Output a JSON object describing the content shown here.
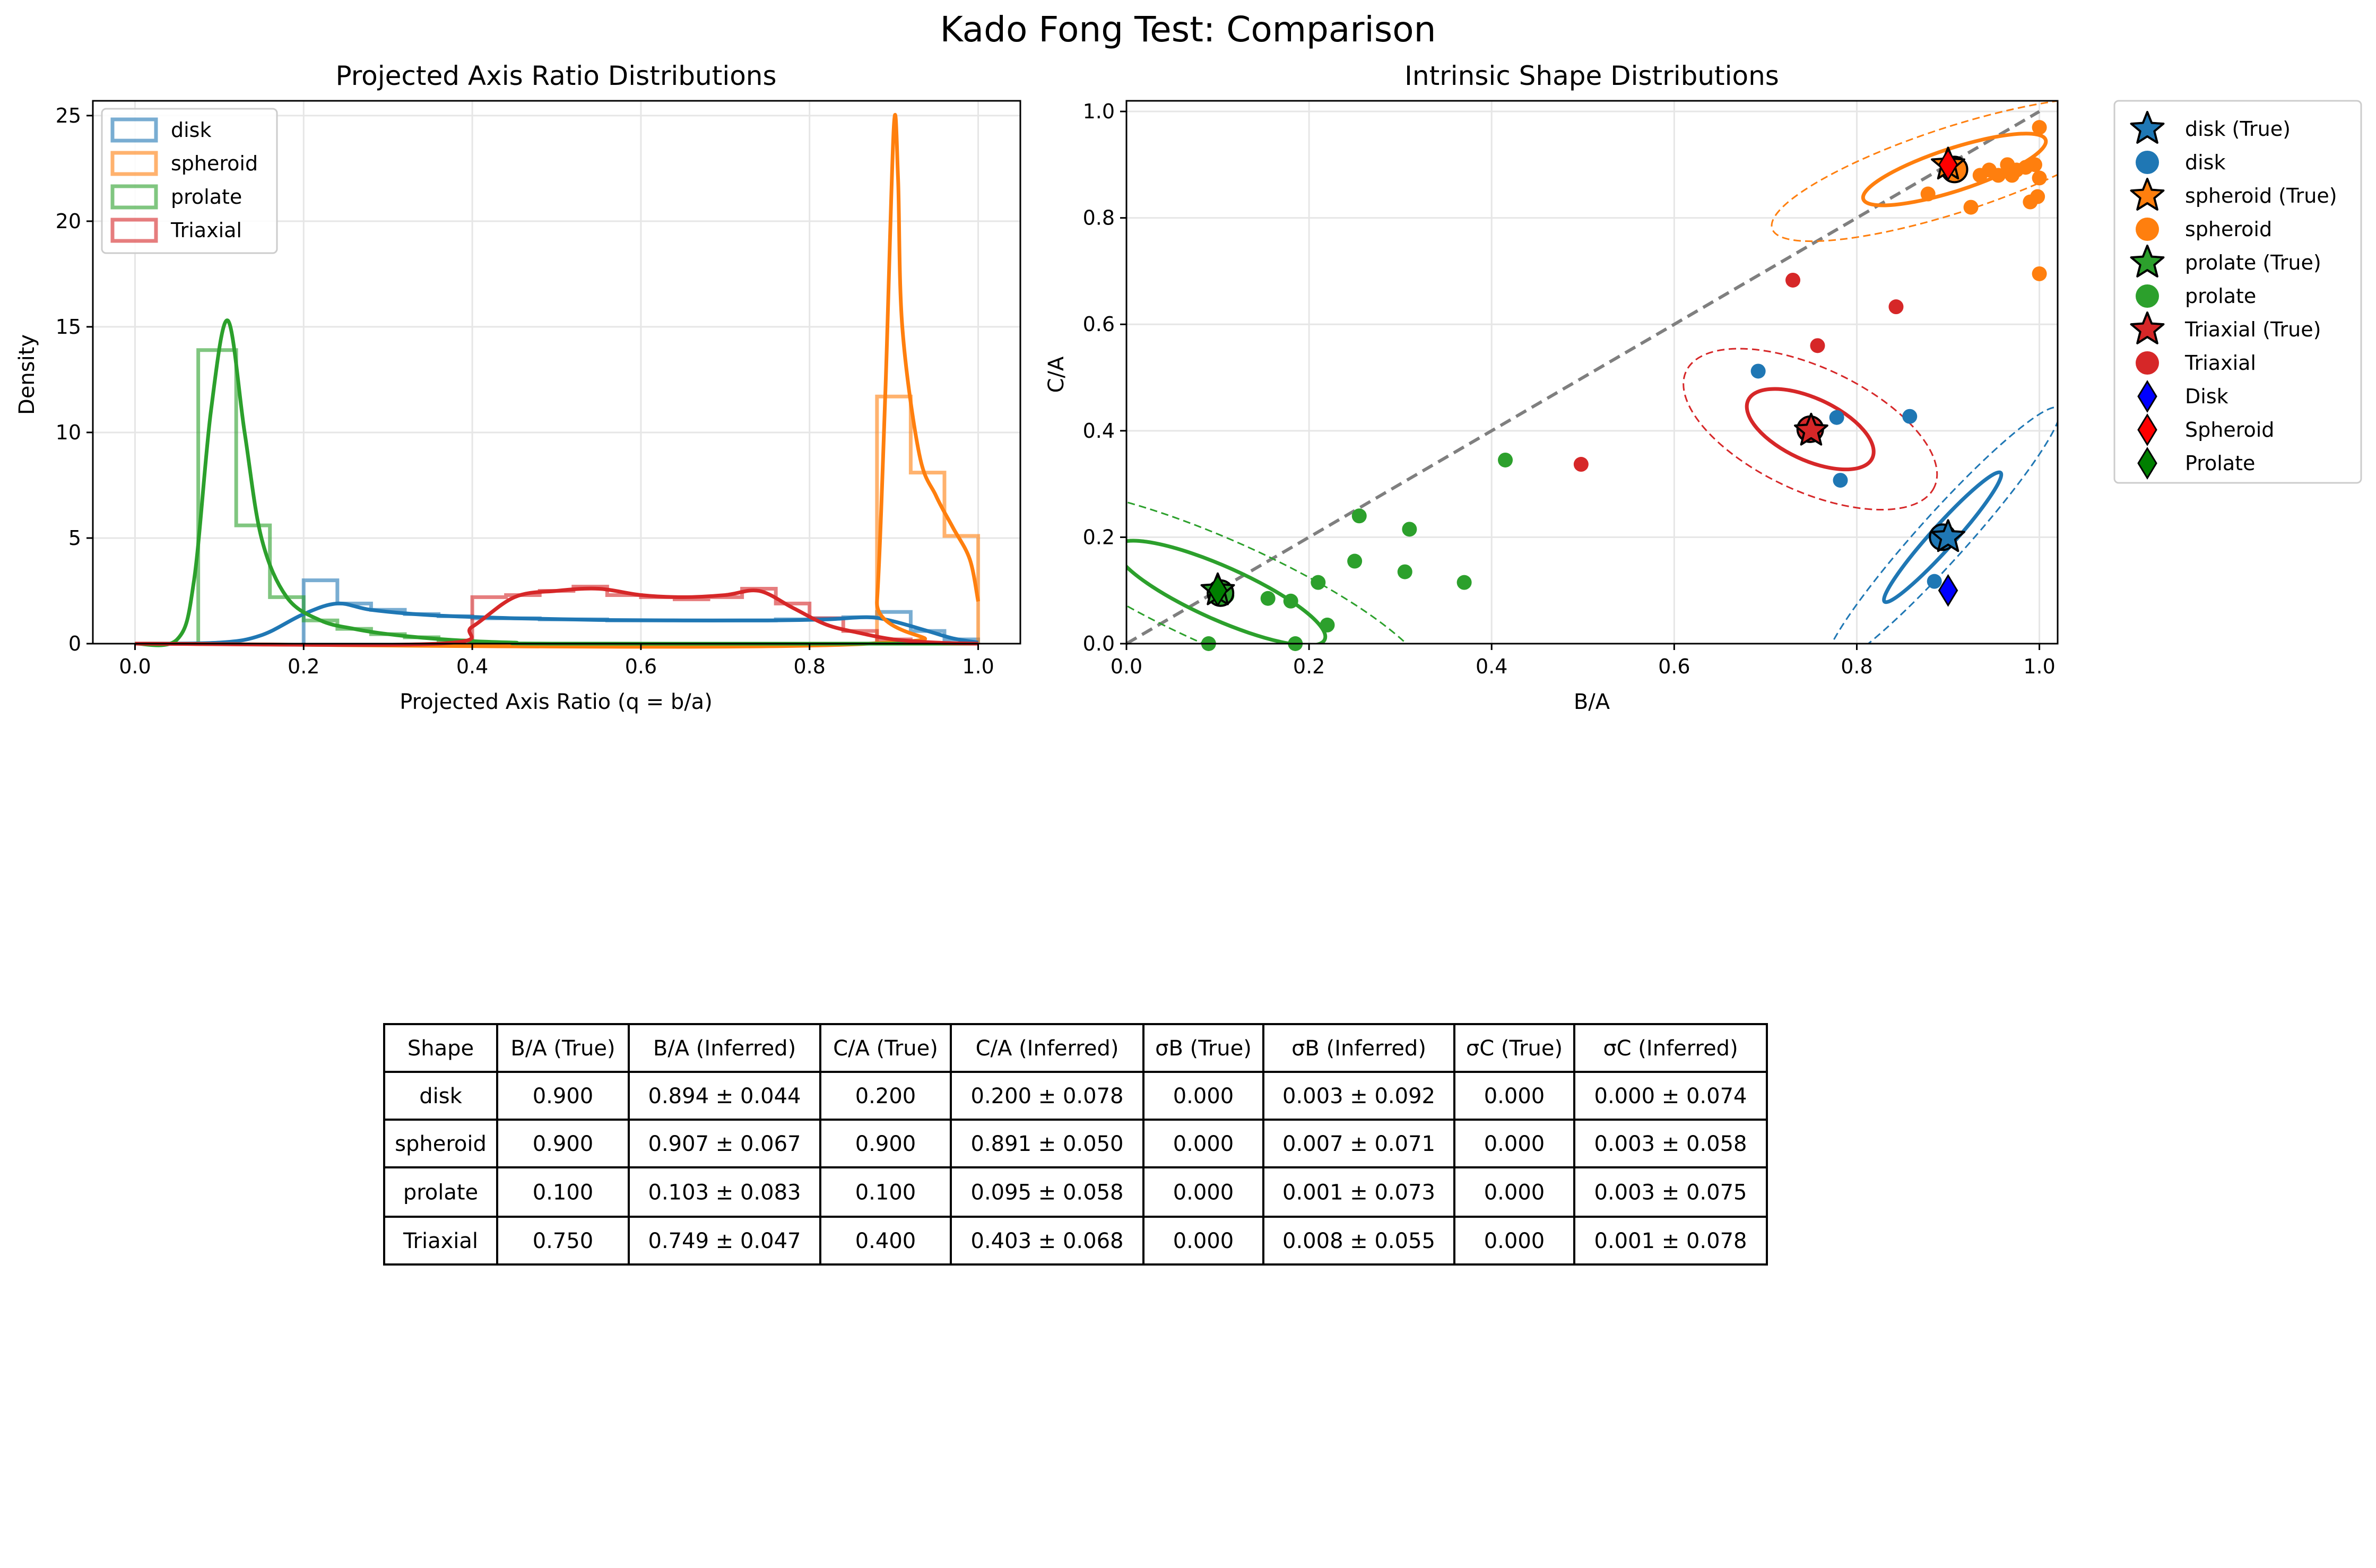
{
  "figure": {
    "title": "Kado Fong Test: Comparison"
  },
  "colors": {
    "disk": "#1f77b4",
    "spheroid": "#ff7f0e",
    "prolate": "#2ca02c",
    "triaxial": "#d62728",
    "disk_marker": "#0000ff",
    "spheroid_marker": "#ff0000",
    "prolate_marker": "#007f00",
    "identity_line": "#7f7f7f"
  },
  "chart_data": [
    {
      "type": "histogram",
      "title": "Projected Axis Ratio Distributions",
      "xlabel": "Projected Axis Ratio (q = b/a)",
      "ylabel": "Density",
      "xlim": [
        -0.05,
        1.05
      ],
      "ylim": [
        0,
        25.7
      ],
      "xticks": [
        0.0,
        0.2,
        0.4,
        0.6,
        0.8,
        1.0
      ],
      "xtick_labels": [
        "0.0",
        "0.2",
        "0.4",
        "0.6",
        "0.8",
        "1.0"
      ],
      "yticks": [
        0,
        5,
        10,
        15,
        20,
        25
      ],
      "ytick_labels": [
        "0",
        "5",
        "10",
        "15",
        "20",
        "25"
      ],
      "grid": true,
      "legend": {
        "position": "top-left",
        "entries": [
          "disk",
          "spheroid",
          "prolate",
          "Triaxial"
        ]
      },
      "histograms": [
        {
          "name": "disk",
          "color_key": "disk",
          "edges": [
            0.2,
            0.24,
            0.28,
            0.32,
            0.36,
            0.4,
            0.44,
            0.48,
            0.52,
            0.56,
            0.6,
            0.64,
            0.68,
            0.72,
            0.76,
            0.8,
            0.84,
            0.88,
            0.92,
            0.96,
            1.0
          ],
          "values": [
            3.0,
            1.9,
            1.6,
            1.4,
            1.3,
            1.2,
            1.2,
            1.15,
            1.15,
            1.1,
            1.1,
            1.1,
            1.1,
            1.1,
            1.15,
            1.2,
            1.25,
            1.5,
            0.6,
            0.2
          ]
        },
        {
          "name": "spheroid",
          "color_key": "spheroid",
          "edges": [
            0.88,
            0.92,
            0.96,
            1.0
          ],
          "values": [
            11.7,
            8.1,
            5.1
          ]
        },
        {
          "name": "prolate",
          "color_key": "prolate",
          "edges": [
            0.075,
            0.12,
            0.16,
            0.2,
            0.24,
            0.28,
            0.32,
            0.36,
            0.4
          ],
          "values": [
            13.9,
            5.6,
            2.2,
            1.1,
            0.7,
            0.45,
            0.3,
            0.15
          ]
        },
        {
          "name": "Triaxial",
          "color_key": "triaxial",
          "edges": [
            0.4,
            0.44,
            0.48,
            0.52,
            0.56,
            0.6,
            0.64,
            0.68,
            0.72,
            0.76,
            0.8,
            0.84,
            0.88,
            0.92
          ],
          "values": [
            2.2,
            2.3,
            2.5,
            2.7,
            2.3,
            2.2,
            2.1,
            2.2,
            2.6,
            1.9,
            1.2,
            0.6,
            0.2
          ]
        }
      ],
      "kde": [
        {
          "name": "disk",
          "color_key": "disk",
          "x": [
            0.0,
            0.1,
            0.15,
            0.2,
            0.24,
            0.28,
            0.35,
            0.45,
            0.55,
            0.65,
            0.75,
            0.82,
            0.87,
            0.9,
            0.94,
            0.97,
            1.0
          ],
          "y": [
            0.0,
            0.05,
            0.4,
            1.4,
            1.9,
            1.6,
            1.35,
            1.2,
            1.12,
            1.1,
            1.1,
            1.15,
            1.25,
            1.05,
            0.6,
            0.25,
            0.05
          ]
        },
        {
          "name": "spheroid",
          "color_key": "spheroid",
          "x": [
            0.0,
            0.87,
            0.88,
            0.89,
            0.9,
            0.905,
            0.91,
            0.93,
            0.95,
            0.97,
            0.99,
            1.0
          ],
          "y": [
            0.0,
            0.0,
            2.0,
            12.0,
            24.5,
            22.0,
            15.0,
            9.0,
            7.0,
            5.5,
            4.0,
            2.0
          ]
        },
        {
          "name": "prolate",
          "color_key": "prolate",
          "x": [
            0.0,
            0.05,
            0.07,
            0.09,
            0.11,
            0.13,
            0.15,
            0.18,
            0.22,
            0.26,
            0.3,
            0.35,
            0.4,
            0.45,
            0.5,
            1.0
          ],
          "y": [
            0.0,
            0.2,
            3.0,
            11.0,
            15.3,
            10.0,
            5.0,
            2.2,
            1.1,
            0.7,
            0.45,
            0.25,
            0.12,
            0.05,
            0.0,
            0.0
          ]
        },
        {
          "name": "Triaxial",
          "color_key": "triaxial",
          "x": [
            0.0,
            0.36,
            0.4,
            0.45,
            0.5,
            0.55,
            0.6,
            0.65,
            0.7,
            0.74,
            0.78,
            0.82,
            0.86,
            0.9,
            0.95,
            1.0
          ],
          "y": [
            0.0,
            0.0,
            0.8,
            2.2,
            2.5,
            2.6,
            2.3,
            2.2,
            2.3,
            2.5,
            1.7,
            0.9,
            0.5,
            0.2,
            0.05,
            0.0
          ]
        }
      ]
    },
    {
      "type": "scatter",
      "title": "Intrinsic Shape Distributions",
      "xlabel": "B/A",
      "ylabel": "C/A",
      "xlim": [
        0.0,
        1.02
      ],
      "ylim": [
        0.0,
        1.02
      ],
      "xticks": [
        0.0,
        0.2,
        0.4,
        0.6,
        0.8,
        1.0
      ],
      "xtick_labels": [
        "0.0",
        "0.2",
        "0.4",
        "0.6",
        "0.8",
        "1.0"
      ],
      "yticks": [
        0.0,
        0.2,
        0.4,
        0.6,
        0.8,
        1.0
      ],
      "ytick_labels": [
        "0.0",
        "0.2",
        "0.4",
        "0.6",
        "0.8",
        "1.0"
      ],
      "grid": true,
      "identity_line": {
        "x": [
          0.0,
          1.0
        ],
        "y": [
          0.0,
          1.0
        ]
      },
      "legend": {
        "position": "outside-right",
        "entries": [
          {
            "label": "disk (True)",
            "marker": "star",
            "color_key": "disk"
          },
          {
            "label": "disk",
            "marker": "circle",
            "color_key": "disk"
          },
          {
            "label": "spheroid (True)",
            "marker": "star",
            "color_key": "spheroid"
          },
          {
            "label": "spheroid",
            "marker": "circle",
            "color_key": "spheroid"
          },
          {
            "label": "prolate (True)",
            "marker": "star",
            "color_key": "prolate"
          },
          {
            "label": "prolate",
            "marker": "circle",
            "color_key": "prolate"
          },
          {
            "label": "Triaxial (True)",
            "marker": "star",
            "color_key": "triaxial"
          },
          {
            "label": "Triaxial",
            "marker": "circle",
            "color_key": "triaxial"
          },
          {
            "label": "Disk",
            "marker": "diamond",
            "color_key": "disk_marker"
          },
          {
            "label": "Spheroid",
            "marker": "diamond",
            "color_key": "spheroid_marker"
          },
          {
            "label": "Prolate",
            "marker": "diamond",
            "color_key": "prolate_marker"
          }
        ]
      },
      "points": [
        {
          "name": "disk",
          "color_key": "disk",
          "x": [
            0.692,
            0.778,
            0.782,
            0.858,
            0.885
          ],
          "y": [
            0.512,
            0.425,
            0.307,
            0.427,
            0.117
          ]
        },
        {
          "name": "spheroid",
          "color_key": "spheroid",
          "x": [
            0.878,
            0.925,
            0.935,
            0.945,
            0.955,
            0.965,
            0.975,
            0.985,
            0.995,
            1.0,
            1.0,
            0.998,
            0.99,
            0.97,
            1.0
          ],
          "y": [
            0.845,
            0.82,
            0.88,
            0.89,
            0.88,
            0.9,
            0.89,
            0.895,
            0.9,
            0.97,
            0.875,
            0.84,
            0.83,
            0.88,
            0.695
          ]
        },
        {
          "name": "prolate",
          "color_key": "prolate",
          "x": [
            0.09,
            0.11,
            0.155,
            0.18,
            0.185,
            0.21,
            0.22,
            0.25,
            0.255,
            0.305,
            0.31,
            0.37,
            0.415
          ],
          "y": [
            0.0,
            0.09,
            0.085,
            0.08,
            0.0,
            0.115,
            0.035,
            0.155,
            0.24,
            0.135,
            0.215,
            0.115,
            0.345
          ]
        },
        {
          "name": "Triaxial",
          "color_key": "triaxial",
          "x": [
            0.498,
            0.73,
            0.757,
            0.843
          ],
          "y": [
            0.337,
            0.683,
            0.56,
            0.633
          ]
        }
      ],
      "true_values": [
        {
          "name": "disk (True)",
          "color_key": "disk",
          "x": 0.9,
          "y": 0.2
        },
        {
          "name": "spheroid (True)",
          "color_key": "spheroid",
          "x": 0.9,
          "y": 0.9
        },
        {
          "name": "prolate (True)",
          "color_key": "prolate",
          "x": 0.1,
          "y": 0.1
        },
        {
          "name": "Triaxial (True)",
          "color_key": "triaxial",
          "x": 0.75,
          "y": 0.4
        }
      ],
      "inferred_means": [
        {
          "name": "disk",
          "color_key": "disk",
          "x": 0.894,
          "y": 0.2
        },
        {
          "name": "spheroid",
          "color_key": "spheroid",
          "x": 0.907,
          "y": 0.891
        },
        {
          "name": "prolate",
          "color_key": "prolate",
          "x": 0.103,
          "y": 0.095
        },
        {
          "name": "Triaxial",
          "color_key": "triaxial",
          "x": 0.749,
          "y": 0.403
        }
      ],
      "reference_markers": [
        {
          "name": "Disk",
          "color_key": "disk_marker",
          "x": 0.9,
          "y": 0.1
        },
        {
          "name": "Spheroid",
          "color_key": "spheroid_marker",
          "x": 0.9,
          "y": 0.9
        },
        {
          "name": "Prolate",
          "color_key": "prolate_marker",
          "x": 0.1,
          "y": 0.1
        }
      ],
      "ellipses": [
        {
          "name": "disk",
          "color_key": "disk",
          "cx": 0.894,
          "cy": 0.2,
          "inner": {
            "rx": 0.095,
            "ry": 0.022,
            "angle_deg": -48
          },
          "outer": {
            "rx": 0.19,
            "ry": 0.045,
            "angle_deg": -48
          }
        },
        {
          "name": "spheroid",
          "color_key": "spheroid",
          "cx": 0.907,
          "cy": 0.891,
          "inner": {
            "rx": 0.105,
            "ry": 0.04,
            "angle_deg": -18
          },
          "outer": {
            "rx": 0.21,
            "ry": 0.08,
            "angle_deg": -18
          }
        },
        {
          "name": "prolate",
          "color_key": "prolate",
          "cx": 0.103,
          "cy": 0.095,
          "inner": {
            "rx": 0.125,
            "ry": 0.05,
            "angle_deg": 24
          },
          "outer": {
            "rx": 0.25,
            "ry": 0.1,
            "angle_deg": 24
          }
        },
        {
          "name": "Triaxial",
          "color_key": "triaxial",
          "cx": 0.749,
          "cy": 0.403,
          "inner": {
            "rx": 0.075,
            "ry": 0.058,
            "angle_deg": 25
          },
          "outer": {
            "rx": 0.15,
            "ry": 0.116,
            "angle_deg": 25
          }
        }
      ]
    },
    {
      "type": "table",
      "columns": [
        "Shape",
        "B/A (True)",
        "B/A (Inferred)",
        "C/A (True)",
        "C/A (Inferred)",
        "σB (True)",
        "σB (Inferred)",
        "σC (True)",
        "σC (Inferred)"
      ],
      "rows": [
        [
          "disk",
          "0.900",
          "0.894 ± 0.044",
          "0.200",
          "0.200 ± 0.078",
          "0.000",
          "0.003 ± 0.092",
          "0.000",
          "0.000 ± 0.074"
        ],
        [
          "spheroid",
          "0.900",
          "0.907 ± 0.067",
          "0.900",
          "0.891 ± 0.050",
          "0.000",
          "0.007 ± 0.071",
          "0.000",
          "0.003 ± 0.058"
        ],
        [
          "prolate",
          "0.100",
          "0.103 ± 0.083",
          "0.100",
          "0.095 ± 0.058",
          "0.000",
          "0.001 ± 0.073",
          "0.000",
          "0.003 ± 0.075"
        ],
        [
          "Triaxial",
          "0.750",
          "0.749 ± 0.047",
          "0.400",
          "0.403 ± 0.068",
          "0.000",
          "0.008 ± 0.055",
          "0.000",
          "0.001 ± 0.078"
        ]
      ]
    }
  ]
}
